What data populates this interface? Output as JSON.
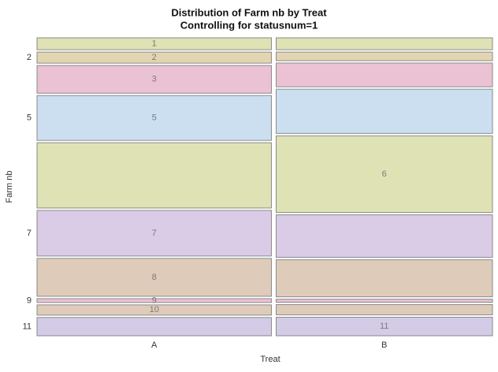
{
  "chart_data": {
    "type": "mosaic",
    "title": "Distribution of Farm nb by Treat",
    "subtitle": "Controlling for statusnum=1",
    "x_label": "Treat",
    "y_label": "Farm nb",
    "categories": [
      "A",
      "B"
    ],
    "column_shares": [
      52,
      48
    ],
    "yticks": [
      "2",
      "5",
      "7",
      "9",
      "11"
    ],
    "series": [
      {
        "name": "1",
        "color": "#dfe2b4",
        "values": [
          4.3,
          4.3
        ]
      },
      {
        "name": "2",
        "color": "#e2d6b2",
        "values": [
          4.0,
          3.1
        ]
      },
      {
        "name": "3",
        "color": "#ebc2d3",
        "values": [
          10.0,
          8.6
        ]
      },
      {
        "name": "5",
        "color": "#cbdff0",
        "values": [
          16.2,
          16.0
        ]
      },
      {
        "name": "6",
        "color": "#dfe2b4",
        "values": [
          23.6,
          27.7
        ]
      },
      {
        "name": "7",
        "color": "#dacbe6",
        "values": [
          16.5,
          15.4
        ]
      },
      {
        "name": "8",
        "color": "#dfcbba",
        "values": [
          13.7,
          13.4
        ]
      },
      {
        "name": "9",
        "color": "#ebc2d3",
        "values": [
          1.4,
          1.1
        ]
      },
      {
        "name": "10",
        "color": "#dfcbba",
        "values": [
          3.7,
          3.7
        ]
      },
      {
        "name": "11",
        "color": "#d4cbe6",
        "values": [
          6.6,
          6.7
        ]
      }
    ]
  }
}
